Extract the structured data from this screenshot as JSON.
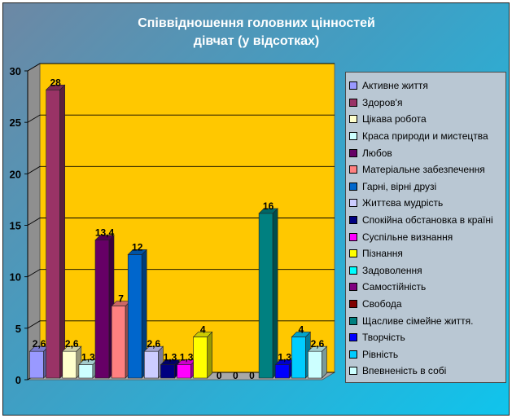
{
  "chart_data": {
    "type": "bar",
    "title": "Співвідношення  головних цінностей\nдівчат (у відсотках)",
    "ylim": [
      0,
      30
    ],
    "yticks": [
      "0",
      "5",
      "10",
      "15",
      "20",
      "25",
      "30"
    ],
    "grid": true,
    "legend_position": "right",
    "series": [
      {
        "name": "Активне життя",
        "value": 2.6,
        "label": "2,6",
        "color": "#9999ff"
      },
      {
        "name": "Здоров'я",
        "value": 28,
        "label": "28",
        "color": "#993366"
      },
      {
        "name": "Цікава робота",
        "value": 2.6,
        "label": "2,6",
        "color": "#ffffcc"
      },
      {
        "name": "Краса природи и мистецтва",
        "value": 1.3,
        "label": "1,3",
        "color": "#ccffff"
      },
      {
        "name": "Любов",
        "value": 13.4,
        "label": "13,4",
        "color": "#660066"
      },
      {
        "name": "Матеріальне забезпечення",
        "value": 7,
        "label": "7",
        "color": "#ff8080"
      },
      {
        "name": "Гарні, вірні друзі",
        "value": 12,
        "label": "12",
        "color": "#0066cc"
      },
      {
        "name": "Життєва мудрість",
        "value": 2.6,
        "label": "2,6",
        "color": "#ccccff"
      },
      {
        "name": "Спокійна обстановка в країні",
        "value": 1.3,
        "label": "1,3",
        "color": "#000080"
      },
      {
        "name": "Суспільне визнання",
        "value": 1.3,
        "label": "1,3",
        "color": "#ff00ff"
      },
      {
        "name": "Пізнання",
        "value": 4,
        "label": "4",
        "color": "#ffff00"
      },
      {
        "name": "Задоволення",
        "value": 0,
        "label": "0",
        "color": "#00ffff"
      },
      {
        "name": "Самостійність",
        "value": 0,
        "label": "0",
        "color": "#800080"
      },
      {
        "name": "Свобода",
        "value": 0,
        "label": "0",
        "color": "#800000"
      },
      {
        "name": "Щасливе сімейне життя.",
        "value": 16,
        "label": "16",
        "color": "#008080"
      },
      {
        "name": "Творчість",
        "value": 1.3,
        "label": "1,3",
        "color": "#0000ff"
      },
      {
        "name": "Рівність",
        "value": 4,
        "label": "4",
        "color": "#00ccff"
      },
      {
        "name": "Впевненість в собі",
        "value": 2.6,
        "label": "2,6",
        "color": "#ccffff"
      }
    ]
  },
  "colors": {
    "plot_wall": "#ffc800",
    "plot_floor": "#a8a8a8",
    "legend_background": "#b9c7d3"
  }
}
